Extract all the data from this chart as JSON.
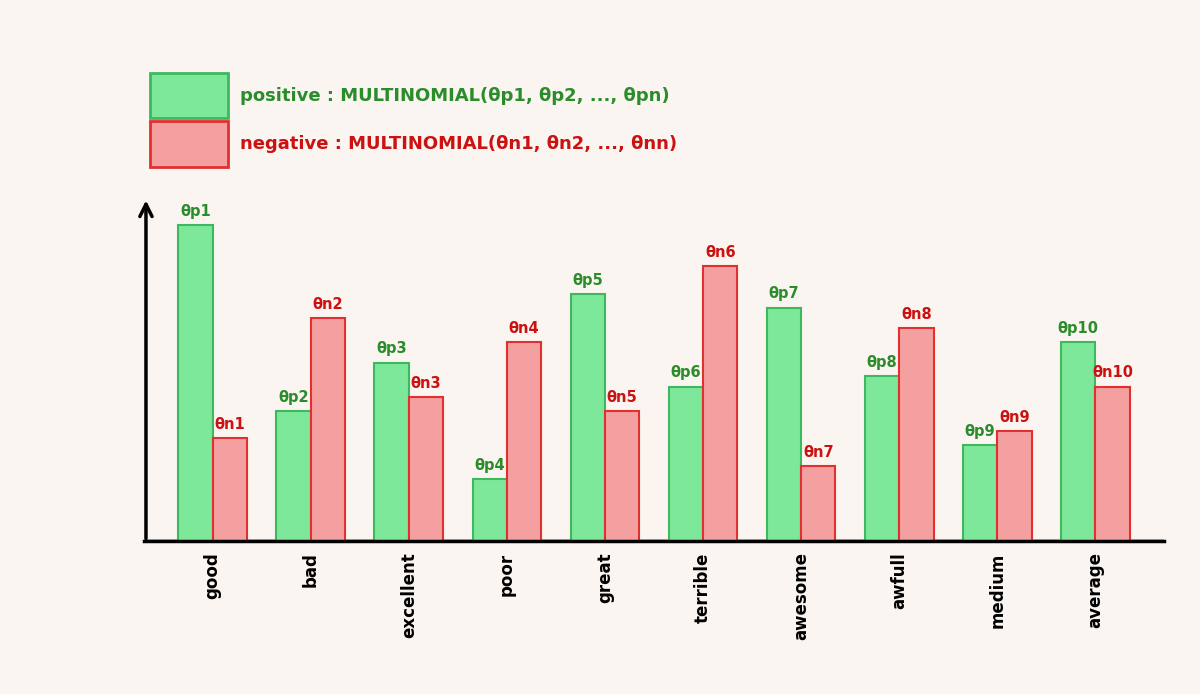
{
  "background_color": "#faf5f0",
  "categories": [
    "good",
    "bad",
    "excellent",
    "poor",
    "great",
    "terrible",
    "awesome",
    "awfull",
    "medium",
    "average"
  ],
  "positive_values": [
    0.92,
    0.38,
    0.52,
    0.18,
    0.72,
    0.45,
    0.68,
    0.48,
    0.28,
    0.58
  ],
  "negative_values": [
    0.3,
    0.65,
    0.42,
    0.58,
    0.38,
    0.8,
    0.22,
    0.62,
    0.32,
    0.45
  ],
  "positive_labels": [
    "θp1",
    "θp2",
    "θp3",
    "θp4",
    "θp5",
    "θp6",
    "θp7",
    "θp8",
    "θp9",
    "θp10"
  ],
  "negative_labels": [
    "θn1",
    "θn2",
    "θn3",
    "θn4",
    "θn5",
    "θn6",
    "θn7",
    "θn8",
    "θn9",
    "θn10"
  ],
  "positive_color": "#7de89a",
  "negative_color": "#f5a0a0",
  "positive_edge_color": "#3db85e",
  "negative_edge_color": "#e03030",
  "positive_text_color": "#2a8c2a",
  "negative_text_color": "#cc1111",
  "legend_pos_text": "positive : MULTINOMIAL(θp1, θp2, ..., θpn)",
  "legend_neg_text": "negative : MULTINOMIAL(θn1, θn2, ..., θnn)",
  "bar_width": 0.35,
  "ylim": [
    0,
    1.05
  ]
}
